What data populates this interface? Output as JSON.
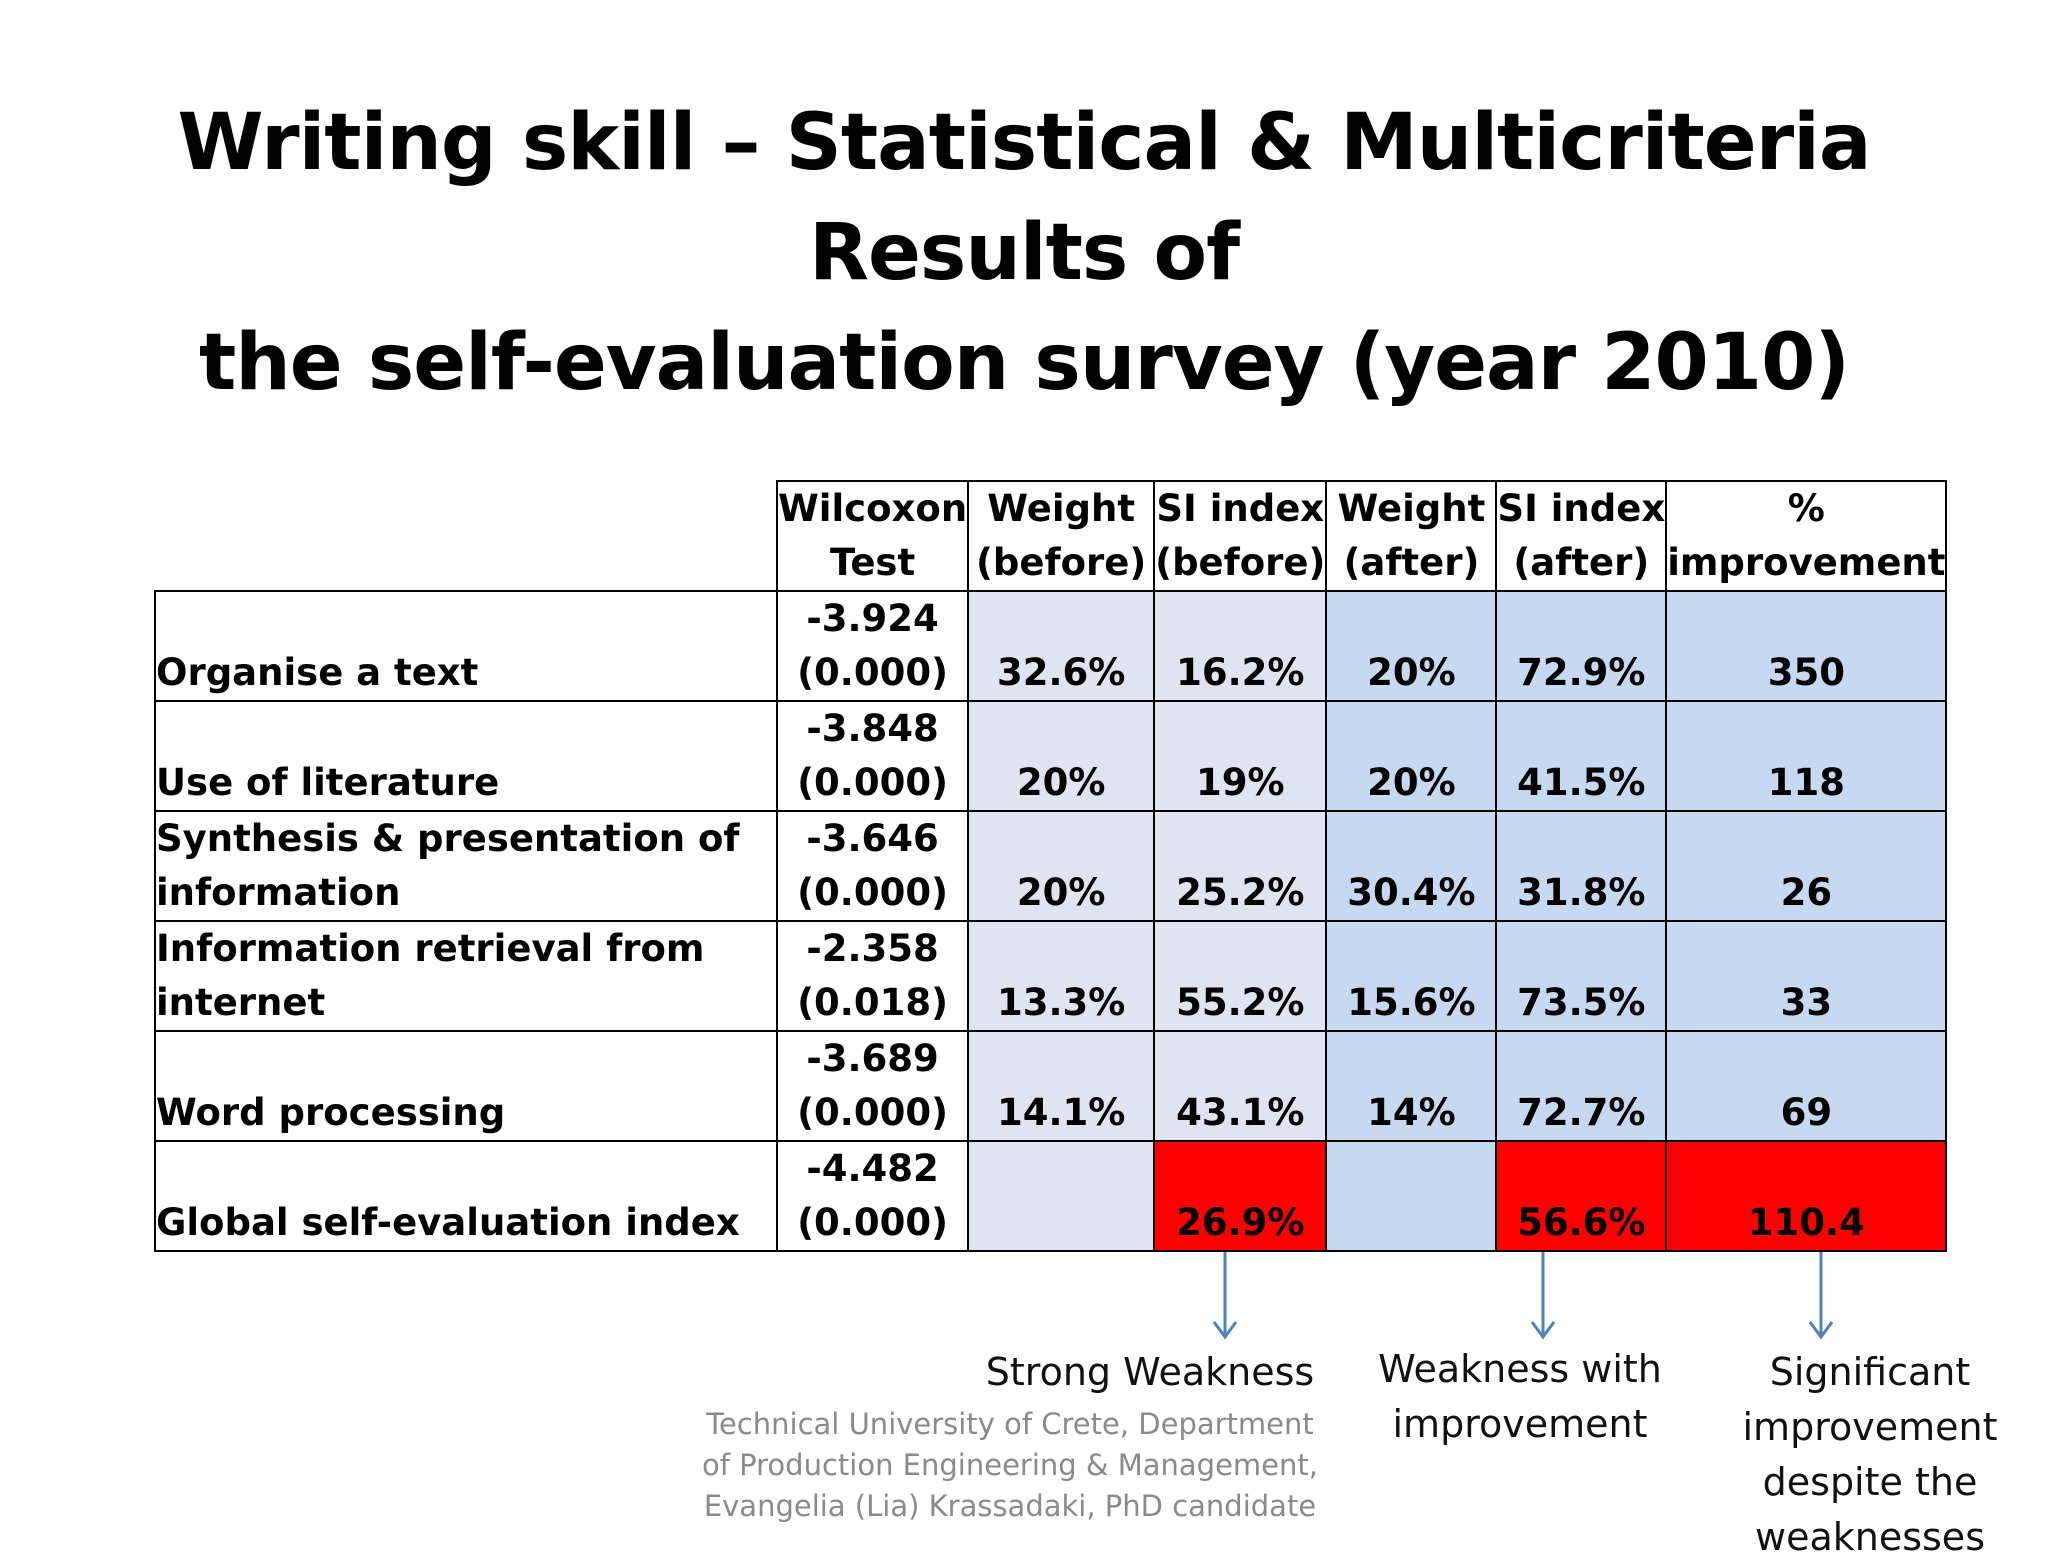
{
  "title": {
    "line1": "Writing skill – Statistical & Multicriteria Results of",
    "line2": "the self-evaluation survey (year 2010)"
  },
  "table": {
    "headers": [
      {
        "line1": "Wilcoxon",
        "line2": "Test"
      },
      {
        "line1": "Weight",
        "line2": "(before)"
      },
      {
        "line1": "SI index",
        "line2": "(before)"
      },
      {
        "line1": "Weight",
        "line2": "(after)"
      },
      {
        "line1": "SI index",
        "line2": "(after)"
      },
      {
        "line1": "%",
        "line2": "improvement"
      }
    ],
    "rows": [
      {
        "label": "Organise a text",
        "wilcoxon": "-3.924",
        "p": "(0.000)",
        "weight_before": "32.6%",
        "si_before": "16.2%",
        "weight_after": "20%",
        "si_after": "72.9%",
        "improvement": "350"
      },
      {
        "label": "Use of literature",
        "wilcoxon": "-3.848",
        "p": "(0.000)",
        "weight_before": "20%",
        "si_before": "19%",
        "weight_after": "20%",
        "si_after": "41.5%",
        "improvement": "118"
      },
      {
        "label": "Synthesis & presentation of information",
        "wilcoxon": "-3.646",
        "p": "(0.000)",
        "weight_before": "20%",
        "si_before": "25.2%",
        "weight_after": "30.4%",
        "si_after": "31.8%",
        "improvement": "26"
      },
      {
        "label": "Information retrieval from internet",
        "wilcoxon": "-2.358",
        "p": "(0.018)",
        "weight_before": "13.3%",
        "si_before": "55.2%",
        "weight_after": "15.6%",
        "si_after": "73.5%",
        "improvement": "33"
      },
      {
        "label": "Word processing",
        "wilcoxon": "-3.689",
        "p": "(0.000)",
        "weight_before": "14.1%",
        "si_before": "43.1%",
        "weight_after": "14%",
        "si_after": "72.7%",
        "improvement": "69"
      },
      {
        "label": "Global self-evaluation index",
        "wilcoxon": "-4.482",
        "p": "(0.000)",
        "weight_before": "",
        "si_before": "26.9%",
        "weight_after": "",
        "si_after": "56.6%",
        "improvement": "110.4"
      }
    ]
  },
  "annotations": {
    "strong_weakness": "Strong Weakness",
    "weakness_improvement": {
      "line1": "Weakness with",
      "line2": "improvement"
    },
    "significant_improvement": {
      "line1": "Significant",
      "line2": "improvement",
      "line3": "despite the",
      "line4": "weaknesses"
    }
  },
  "footer": {
    "line1": "Technical University of Crete, Department",
    "line2": "of Production Engineering & Management,",
    "line3": "Evangelia (Lia) Krassadaki, PhD candidate"
  },
  "colors": {
    "before_fill": "#dfe4f1",
    "after_fill": "#c6d9f0",
    "highlight_red": "#ff0000",
    "arrow": "#4f81bd",
    "footer_text": "#8a8a8a"
  }
}
